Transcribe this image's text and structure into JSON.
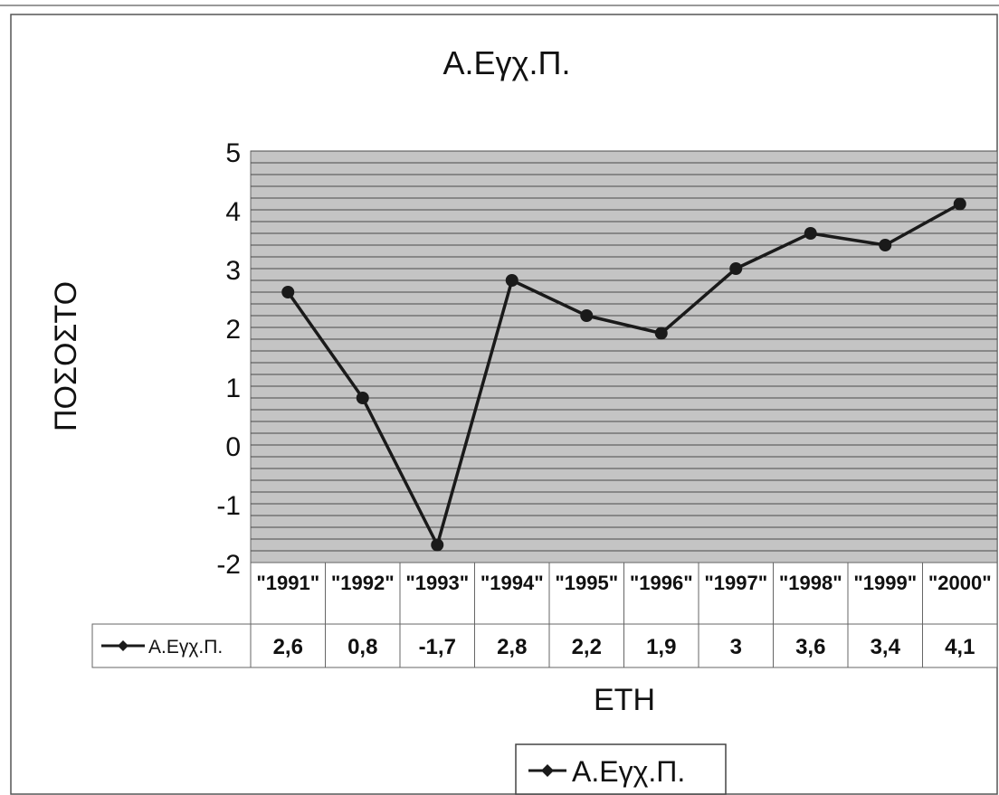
{
  "chart_data": {
    "type": "line",
    "title": "Α.Εγχ.Π.",
    "xlabel": "ΕΤΗ",
    "ylabel": "ΠΟΣΟΣΤΟ",
    "ylim": [
      -2,
      5
    ],
    "yticks": [
      5,
      4,
      3,
      2,
      1,
      0,
      -1,
      -2
    ],
    "grid": true,
    "legend_position": "bottom",
    "categories": [
      "\"1991\"",
      "\"1992\"",
      "\"1993\"",
      "\"1994\"",
      "\"1995\"",
      "\"1996\"",
      "\"1997\"",
      "\"1998\"",
      "\"1999\"",
      "\"2000\""
    ],
    "series": [
      {
        "name": "Α.Εγχ.Π.",
        "values": [
          2.6,
          0.8,
          -1.7,
          2.8,
          2.2,
          1.9,
          3,
          3.6,
          3.4,
          4.1
        ],
        "value_labels": [
          "2,6",
          "0,8",
          "-1,7",
          "2,8",
          "2,2",
          "1,9",
          "3",
          "3,6",
          "3,4",
          "4,1"
        ],
        "color": "#1a1a1a"
      }
    ],
    "plot_background": "#c4c4c4"
  }
}
